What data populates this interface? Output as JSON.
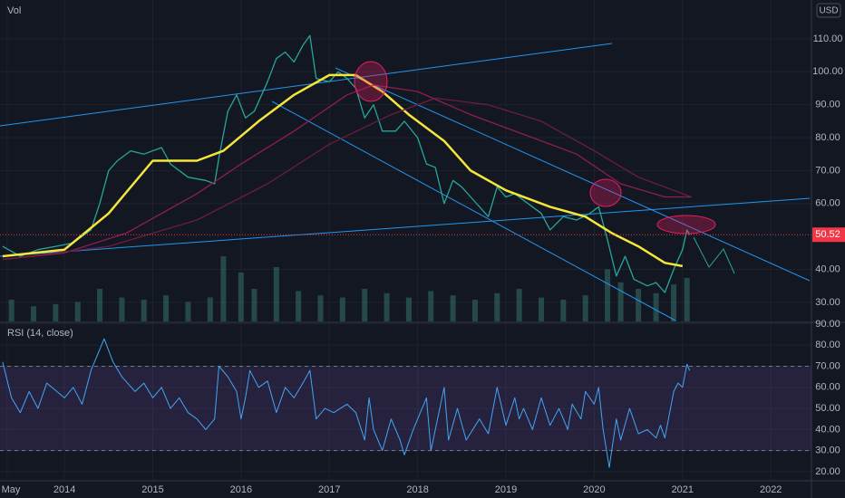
{
  "chart_data": [
    {
      "type": "line",
      "currency": "USD",
      "last_price": 50.52,
      "last_price_color": "#f23645",
      "xlim": [
        2013.27,
        2022.46
      ],
      "ylim": [
        24.2,
        121.8
      ],
      "yticks": [
        {
          "value": 110,
          "label": "110.00"
        },
        {
          "value": 100,
          "label": "100.00"
        },
        {
          "value": 90,
          "label": "90.00"
        },
        {
          "value": 80,
          "label": "80.00"
        },
        {
          "value": 70,
          "label": "70.00"
        },
        {
          "value": 60,
          "label": "60.00"
        },
        {
          "value": 40,
          "label": "40.00"
        },
        {
          "value": 30,
          "label": "30.00"
        }
      ],
      "grid": true,
      "volume": {
        "label": "Vol",
        "color": "#2e5f5a",
        "ylim": [
          0,
          100
        ],
        "x": [
          2013.4,
          2013.65,
          2013.9,
          2014.15,
          2014.4,
          2014.65,
          2014.9,
          2015.15,
          2015.4,
          2015.65,
          2015.8,
          2016.0,
          2016.15,
          2016.4,
          2016.65,
          2016.9,
          2017.15,
          2017.4,
          2017.65,
          2017.9,
          2018.15,
          2018.4,
          2018.65,
          2018.9,
          2019.15,
          2019.4,
          2019.65,
          2019.9,
          2020.15,
          2020.3,
          2020.5,
          2020.7,
          2020.9,
          2021.05
        ],
        "values": [
          20,
          14,
          16,
          18,
          30,
          22,
          20,
          24,
          18,
          22,
          60,
          45,
          30,
          50,
          28,
          24,
          22,
          30,
          26,
          22,
          28,
          24,
          20,
          26,
          30,
          22,
          20,
          24,
          48,
          36,
          30,
          26,
          34,
          40
        ]
      },
      "series": [
        {
          "color": "#26a69a",
          "x": [
            2013.3,
            2013.5,
            2013.7,
            2013.9,
            2014.1,
            2014.3,
            2014.4,
            2014.5,
            2014.6,
            2014.75,
            2014.9,
            2015.1,
            2015.2,
            2015.4,
            2015.6,
            2015.7,
            2015.75,
            2015.85,
            2015.95,
            2016.05,
            2016.15,
            2016.3,
            2016.4,
            2016.5,
            2016.6,
            2016.7,
            2016.78,
            2016.85,
            2017.0,
            2017.1,
            2017.2,
            2017.3,
            2017.4,
            2017.5,
            2017.6,
            2017.75,
            2017.85,
            2018.0,
            2018.1,
            2018.2,
            2018.3,
            2018.4,
            2018.5,
            2018.6,
            2018.8,
            2018.9,
            2019.0,
            2019.1,
            2019.25,
            2019.4,
            2019.5,
            2019.65,
            2019.8,
            2019.95,
            2020.05,
            2020.15,
            2020.25,
            2020.35,
            2020.45,
            2020.6,
            2020.7,
            2020.8,
            2020.9,
            2021.0,
            2021.05,
            2021.08
          ],
          "values": [
            47,
            44,
            46,
            47,
            48,
            52,
            60,
            70,
            73,
            76,
            75,
            77,
            72,
            68,
            67,
            66,
            74,
            88,
            93,
            86,
            88,
            97,
            104,
            106,
            103,
            108,
            111,
            98,
            97,
            100,
            98,
            95,
            86,
            90,
            82,
            82,
            85,
            80,
            72,
            71,
            60,
            67,
            65,
            62,
            56,
            65,
            62,
            63,
            60,
            57,
            52,
            56,
            55,
            57,
            59,
            49,
            38,
            44,
            37,
            35,
            36,
            33,
            40,
            46,
            52,
            50.5
          ]
        },
        {
          "color": "#f5e63c",
          "x": [
            2013.3,
            2014.0,
            2014.5,
            2015.0,
            2015.5,
            2015.8,
            2016.2,
            2016.6,
            2017.0,
            2017.3,
            2017.6,
            2017.9,
            2018.3,
            2018.6,
            2019.0,
            2019.5,
            2019.9,
            2020.2,
            2020.5,
            2020.8,
            2021.0
          ],
          "values": [
            44,
            46,
            57,
            73,
            73,
            76,
            85,
            93,
            99,
            99,
            94,
            87,
            79,
            70,
            64,
            59,
            56,
            51,
            47,
            42,
            41
          ]
        },
        {
          "color": "#8e1f4c",
          "x": [
            2013.3,
            2014.0,
            2014.7,
            2015.5,
            2016.0,
            2016.6,
            2017.2,
            2017.5,
            2018.0,
            2018.6,
            2019.3,
            2019.8,
            2020.3,
            2020.8,
            2021.1
          ],
          "values": [
            43,
            45,
            51,
            63,
            72,
            82,
            93,
            96,
            94,
            87,
            80,
            75,
            66,
            62,
            62
          ]
        },
        {
          "color": "#6b1d3f",
          "x": [
            2013.3,
            2014.5,
            2015.5,
            2016.3,
            2017.0,
            2017.7,
            2018.2,
            2018.8,
            2019.4,
            2020.0,
            2020.5,
            2021.1
          ],
          "values": [
            43,
            47,
            55,
            66,
            78,
            87,
            92,
            90,
            85,
            76,
            68,
            62
          ]
        }
      ]
    },
    {
      "type": "line",
      "title": "RSI (14, close)",
      "xlim": [
        2013.27,
        2022.46
      ],
      "ylim": [
        16.1,
        90.4
      ],
      "yticks": [
        {
          "value": 90,
          "label": "90.00"
        },
        {
          "value": 80,
          "label": "80.00"
        },
        {
          "value": 70,
          "label": "70.00"
        },
        {
          "value": 60,
          "label": "60.00"
        },
        {
          "value": 50,
          "label": "50.00"
        },
        {
          "value": 40,
          "label": "40.00"
        },
        {
          "value": 30,
          "label": "30.00"
        },
        {
          "value": 20,
          "label": "20.00"
        }
      ],
      "bands": [
        30,
        70
      ],
      "band_color": "#7e57c2",
      "xticks": [
        {
          "value": 2013.35,
          "label": "May"
        },
        2014,
        2015,
        2016,
        2017,
        2018,
        2019,
        2020,
        2021,
        2022
      ],
      "series": [
        {
          "color": "#42a5f5",
          "x": [
            2013.3,
            2013.4,
            2013.5,
            2013.6,
            2013.7,
            2013.8,
            2014.0,
            2014.1,
            2014.2,
            2014.3,
            2014.4,
            2014.45,
            2014.55,
            2014.65,
            2014.8,
            2014.9,
            2015.0,
            2015.1,
            2015.2,
            2015.3,
            2015.4,
            2015.5,
            2015.6,
            2015.7,
            2015.75,
            2015.85,
            2015.95,
            2016.0,
            2016.05,
            2016.1,
            2016.2,
            2016.3,
            2016.4,
            2016.5,
            2016.6,
            2016.7,
            2016.78,
            2016.85,
            2016.95,
            2017.05,
            2017.2,
            2017.3,
            2017.4,
            2017.45,
            2017.5,
            2017.6,
            2017.7,
            2017.8,
            2017.85,
            2017.95,
            2018.05,
            2018.1,
            2018.15,
            2018.3,
            2018.35,
            2018.45,
            2018.55,
            2018.7,
            2018.8,
            2018.9,
            2019.0,
            2019.1,
            2019.15,
            2019.2,
            2019.3,
            2019.4,
            2019.5,
            2019.6,
            2019.7,
            2019.75,
            2019.85,
            2019.9,
            2020.0,
            2020.05,
            2020.1,
            2020.17,
            2020.25,
            2020.3,
            2020.4,
            2020.5,
            2020.6,
            2020.7,
            2020.75,
            2020.8,
            2020.9,
            2020.95,
            2021.0,
            2021.05,
            2021.08
          ],
          "values": [
            72,
            55,
            48,
            58,
            50,
            62,
            55,
            60,
            52,
            68,
            78,
            83,
            72,
            65,
            58,
            62,
            55,
            60,
            50,
            55,
            48,
            45,
            40,
            45,
            70,
            65,
            58,
            45,
            55,
            68,
            60,
            63,
            48,
            60,
            55,
            62,
            68,
            45,
            50,
            48,
            52,
            48,
            35,
            55,
            40,
            30,
            45,
            35,
            28,
            40,
            50,
            55,
            30,
            60,
            35,
            50,
            35,
            45,
            38,
            60,
            42,
            55,
            45,
            50,
            40,
            55,
            42,
            50,
            40,
            52,
            45,
            58,
            52,
            60,
            40,
            22,
            45,
            35,
            50,
            38,
            40,
            36,
            42,
            36,
            58,
            62,
            60,
            71,
            68
          ]
        }
      ]
    }
  ]
}
